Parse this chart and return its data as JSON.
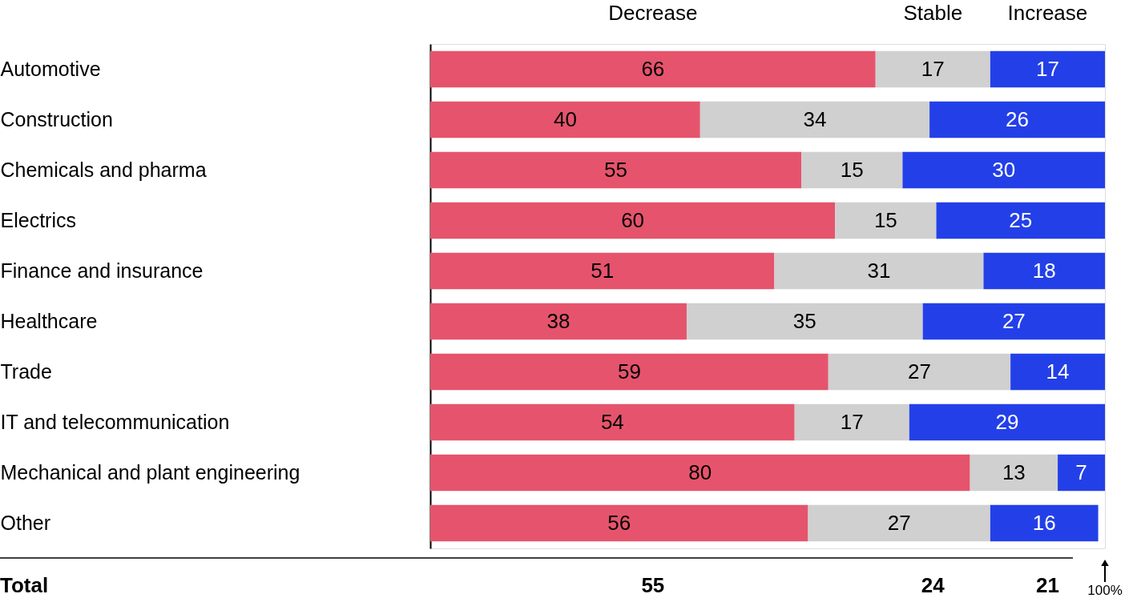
{
  "chart_data": {
    "type": "bar",
    "orientation": "horizontal",
    "stacked": true,
    "data_labels": true,
    "legend": "top",
    "tick_labels": "y",
    "grid": false,
    "categories": [
      "Automotive",
      "Construction",
      "Chemicals and pharma",
      "Electrics",
      "Finance and insurance",
      "Healthcare",
      "Trade",
      "IT and telecommunication",
      "Mechanical and plant engineering",
      "Other"
    ],
    "xlim": [
      0,
      100
    ],
    "series": [
      {
        "name": "Decrease",
        "color": "#e5546c",
        "values": [
          66,
          40,
          55,
          60,
          51,
          38,
          59,
          54,
          80,
          56
        ]
      },
      {
        "name": "Stable",
        "color": "#d0d0d0",
        "values": [
          17,
          34,
          15,
          15,
          31,
          35,
          27,
          17,
          13,
          27
        ]
      },
      {
        "name": "Increase",
        "color": "#2340e8",
        "values": [
          17,
          26,
          30,
          25,
          18,
          27,
          14,
          29,
          7,
          16
        ]
      }
    ],
    "annotations": [
      "Total",
      "55",
      "24",
      "21",
      "100%"
    ]
  }
}
